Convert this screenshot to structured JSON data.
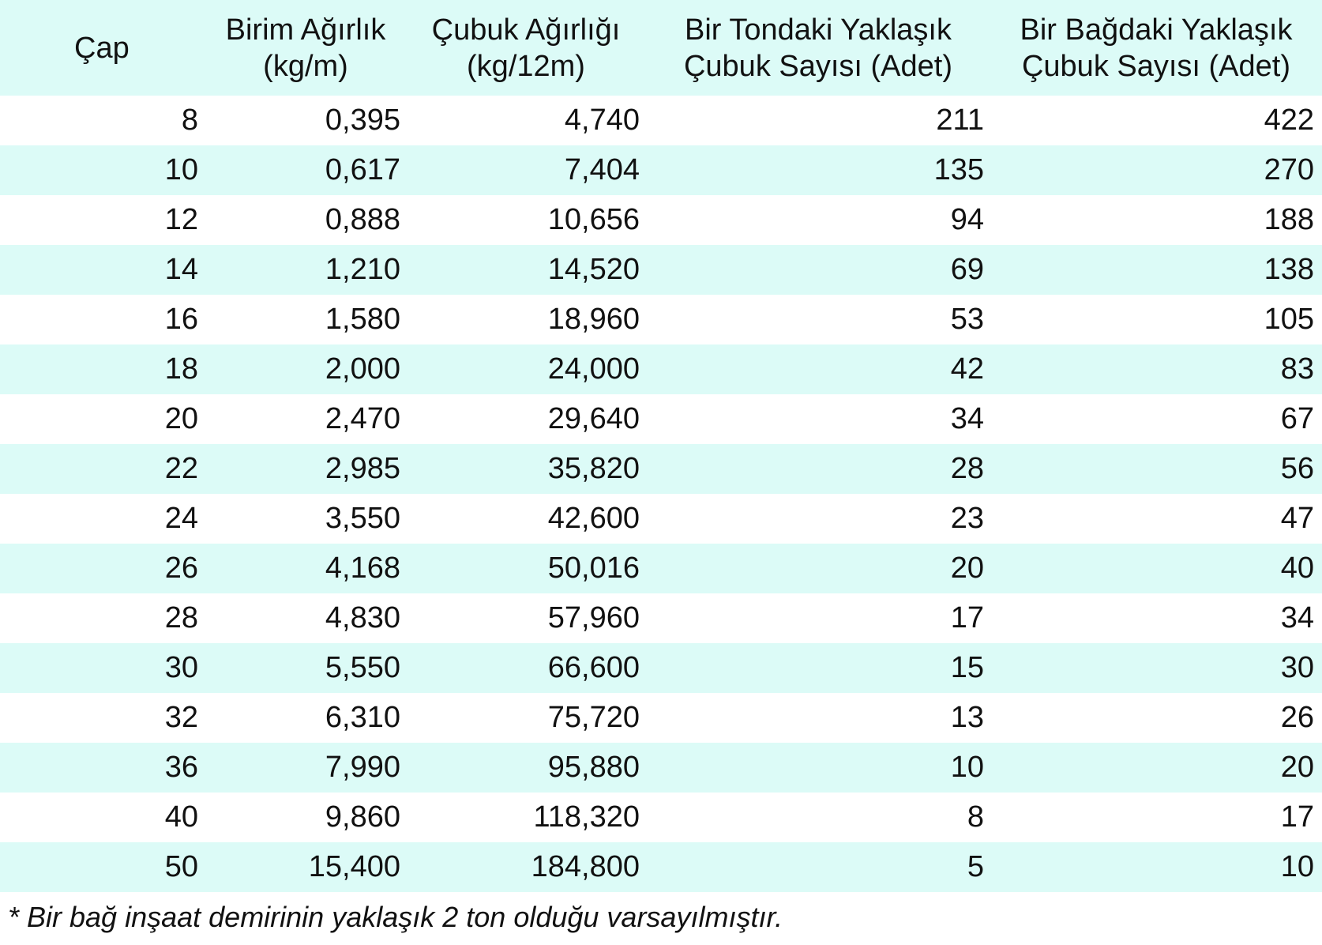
{
  "table": {
    "headers": [
      {
        "line1": "Çap",
        "line2": ""
      },
      {
        "line1": "Birim Ağırlık",
        "line2": "(kg/m)"
      },
      {
        "line1": "Çubuk Ağırlığı",
        "line2": "(kg/12m)"
      },
      {
        "line1": "Bir Tondaki Yaklaşık",
        "line2": "Çubuk Sayısı (Adet)"
      },
      {
        "line1": "Bir Bağdaki Yaklaşık",
        "line2": "Çubuk Sayısı (Adet)"
      }
    ],
    "rows": [
      [
        "8",
        "0,395",
        "4,740",
        "211",
        "422"
      ],
      [
        "10",
        "0,617",
        "7,404",
        "135",
        "270"
      ],
      [
        "12",
        "0,888",
        "10,656",
        "94",
        "188"
      ],
      [
        "14",
        "1,210",
        "14,520",
        "69",
        "138"
      ],
      [
        "16",
        "1,580",
        "18,960",
        "53",
        "105"
      ],
      [
        "18",
        "2,000",
        "24,000",
        "42",
        "83"
      ],
      [
        "20",
        "2,470",
        "29,640",
        "34",
        "67"
      ],
      [
        "22",
        "2,985",
        "35,820",
        "28",
        "56"
      ],
      [
        "24",
        "3,550",
        "42,600",
        "23",
        "47"
      ],
      [
        "26",
        "4,168",
        "50,016",
        "20",
        "40"
      ],
      [
        "28",
        "4,830",
        "57,960",
        "17",
        "34"
      ],
      [
        "30",
        "5,550",
        "66,600",
        "15",
        "30"
      ],
      [
        "32",
        "6,310",
        "75,720",
        "13",
        "26"
      ],
      [
        "36",
        "7,990",
        "95,880",
        "10",
        "20"
      ],
      [
        "40",
        "9,860",
        "118,320",
        "8",
        "17"
      ],
      [
        "50",
        "15,400",
        "184,800",
        "5",
        "10"
      ]
    ]
  },
  "footnote": "* Bir bağ inşaat demirinin yaklaşık 2 ton olduğu varsayılmıştır.",
  "colors": {
    "stripe": "#dcfbf7",
    "text": "#111111"
  }
}
